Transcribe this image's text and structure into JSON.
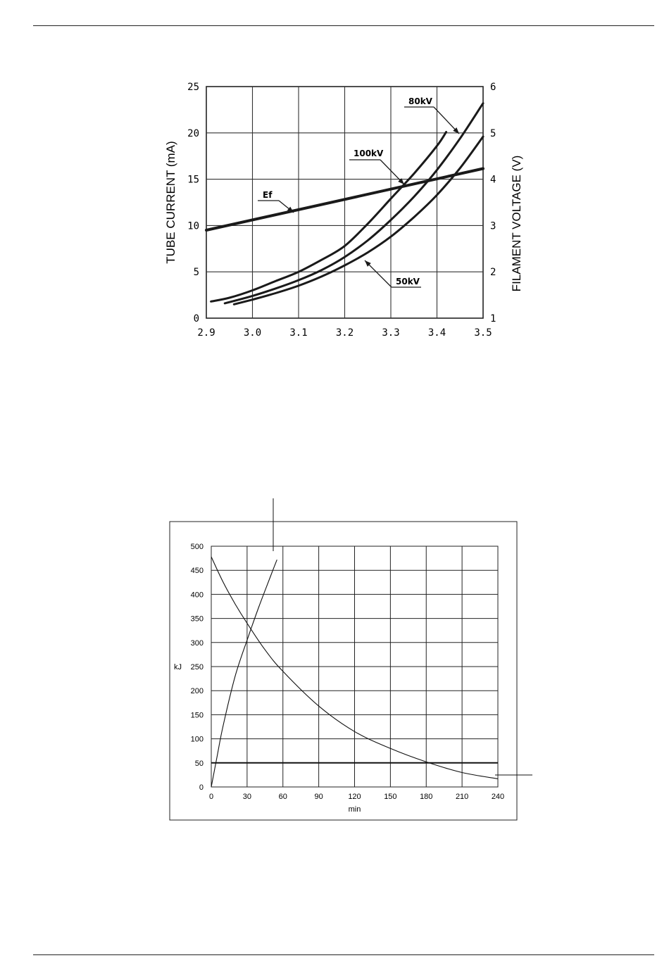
{
  "chart_data": [
    {
      "type": "line",
      "title": "",
      "xlabel": "",
      "ylabel": "TUBE CURRENT (mA)",
      "y2label": "FILAMENT VOLTAGE (V)",
      "xlim": [
        2.9,
        3.5
      ],
      "ylim": [
        0,
        25
      ],
      "y2lim": [
        1,
        6
      ],
      "grid": true,
      "x_ticks": [
        "2.9",
        "3.0",
        "3.1",
        "3.2",
        "3.3",
        "3.4",
        "3.5"
      ],
      "y_ticks": [
        "0",
        "5",
        "10",
        "15",
        "20",
        "25"
      ],
      "y2_ticks": [
        "1",
        "2",
        "3",
        "4",
        "5",
        "6"
      ],
      "series": [
        {
          "name": "100kV",
          "axis": "left",
          "x": [
            2.91,
            2.95,
            3.0,
            3.05,
            3.1,
            3.15,
            3.2,
            3.25,
            3.3,
            3.35,
            3.4,
            3.42
          ],
          "y": [
            1.8,
            2.2,
            3.0,
            4.0,
            5.0,
            6.3,
            7.8,
            10.2,
            12.9,
            15.6,
            18.6,
            20.1
          ]
        },
        {
          "name": "80kV",
          "axis": "left",
          "x": [
            2.94,
            3.0,
            3.05,
            3.1,
            3.15,
            3.2,
            3.25,
            3.3,
            3.35,
            3.4,
            3.45,
            3.5
          ],
          "y": [
            1.6,
            2.4,
            3.2,
            4.1,
            5.2,
            6.6,
            8.4,
            10.6,
            13.1,
            16.0,
            19.4,
            23.2
          ]
        },
        {
          "name": "50kV",
          "axis": "left",
          "x": [
            2.96,
            3.0,
            3.05,
            3.1,
            3.15,
            3.2,
            3.25,
            3.3,
            3.35,
            3.4,
            3.45,
            3.5
          ],
          "y": [
            1.5,
            2.0,
            2.7,
            3.5,
            4.5,
            5.7,
            7.1,
            8.8,
            10.9,
            13.3,
            16.2,
            19.6
          ]
        },
        {
          "name": "Ef",
          "axis": "right",
          "x": [
            2.9,
            3.5
          ],
          "y": [
            2.9,
            4.23
          ]
        }
      ]
    },
    {
      "type": "line",
      "title": "",
      "xlabel": "min",
      "ylabel": "kJ",
      "xlim": [
        0,
        240
      ],
      "ylim": [
        0,
        500
      ],
      "grid": true,
      "x_ticks": [
        "0",
        "30",
        "60",
        "90",
        "120",
        "150",
        "180",
        "210",
        "240"
      ],
      "y_ticks": [
        "0",
        "50",
        "100",
        "150",
        "200",
        "250",
        "300",
        "350",
        "400",
        "450",
        "500"
      ],
      "series": [
        {
          "x": [
            0,
            5,
            10,
            20,
            30,
            40,
            50,
            55
          ],
          "y": [
            0,
            65,
            128,
            230,
            305,
            375,
            440,
            472
          ]
        },
        {
          "x": [
            0,
            10,
            20,
            30,
            45,
            60,
            90,
            120,
            150,
            180,
            210,
            240
          ],
          "y": [
            478,
            425,
            380,
            340,
            285,
            240,
            168,
            115,
            80,
            52,
            30,
            17
          ]
        },
        {
          "x": [
            0,
            240
          ],
          "y": [
            50,
            50
          ]
        }
      ]
    }
  ]
}
